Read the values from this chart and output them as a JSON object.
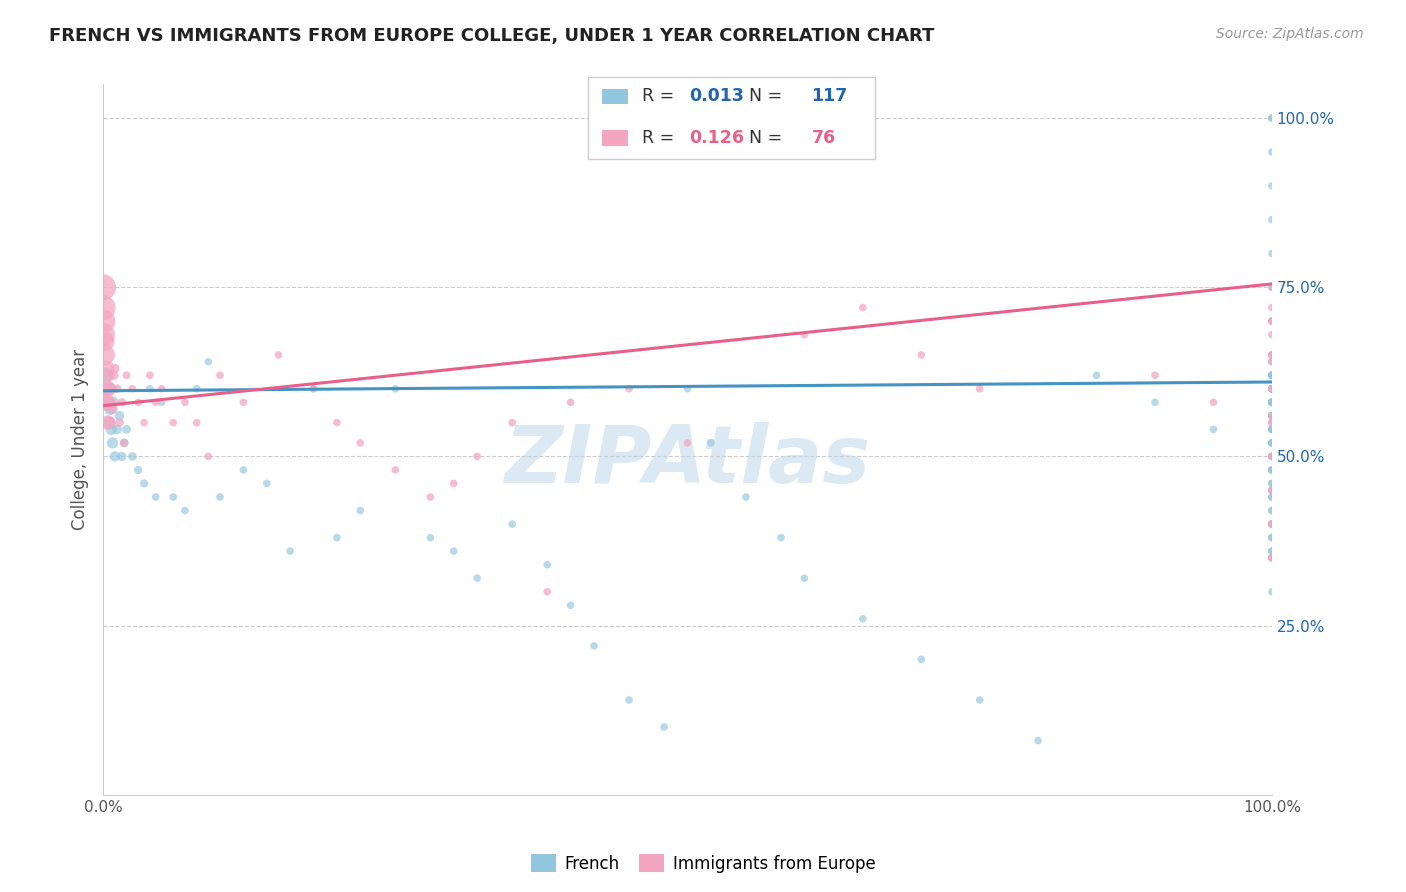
{
  "title": "FRENCH VS IMMIGRANTS FROM EUROPE COLLEGE, UNDER 1 YEAR CORRELATION CHART",
  "source": "Source: ZipAtlas.com",
  "ylabel": "College, Under 1 year",
  "legend_french_R": "0.013",
  "legend_french_N": "117",
  "legend_immigrants_R": "0.126",
  "legend_immigrants_N": "76",
  "legend_label_french": "French",
  "legend_label_immigrants": "Immigrants from Europe",
  "watermark": "ZIPAtlas",
  "blue_color": "#92c5de",
  "pink_color": "#f4a6c0",
  "blue_line_color": "#4393c3",
  "pink_line_color": "#e8608a",
  "blue_r_color": "#2166ac",
  "pink_r_color": "#e8608a",
  "background": "#ffffff",
  "french_x": [
    0.002,
    0.003,
    0.004,
    0.005,
    0.006,
    0.007,
    0.008,
    0.009,
    0.01,
    0.012,
    0.014,
    0.016,
    0.018,
    0.02,
    0.025,
    0.03,
    0.035,
    0.04,
    0.045,
    0.05,
    0.06,
    0.07,
    0.08,
    0.09,
    0.1,
    0.12,
    0.14,
    0.16,
    0.18,
    0.2,
    0.22,
    0.25,
    0.28,
    0.3,
    0.32,
    0.35,
    0.38,
    0.4,
    0.42,
    0.45,
    0.48,
    0.5,
    0.52,
    0.55,
    0.58,
    0.6,
    0.65,
    0.7,
    0.75,
    0.8,
    0.85,
    0.9,
    0.95,
    1.0,
    1.0,
    1.0,
    1.0,
    1.0,
    1.0,
    1.0,
    1.0,
    1.0,
    1.0,
    1.0,
    1.0,
    1.0,
    1.0,
    1.0,
    1.0,
    1.0,
    1.0,
    1.0,
    1.0,
    1.0,
    1.0,
    1.0,
    1.0,
    1.0,
    1.0,
    1.0,
    1.0,
    1.0,
    1.0,
    1.0,
    1.0,
    1.0,
    1.0,
    1.0,
    1.0,
    1.0,
    1.0,
    1.0,
    1.0,
    1.0,
    1.0,
    1.0,
    1.0,
    1.0,
    1.0,
    1.0,
    1.0,
    1.0,
    1.0,
    1.0,
    1.0,
    1.0,
    1.0,
    1.0,
    1.0,
    1.0,
    1.0,
    1.0,
    1.0,
    1.0,
    1.0,
    1.0,
    1.0,
    1.0,
    1.0
  ],
  "french_y": [
    0.62,
    0.6,
    0.58,
    0.55,
    0.57,
    0.54,
    0.52,
    0.58,
    0.5,
    0.54,
    0.56,
    0.5,
    0.52,
    0.54,
    0.5,
    0.48,
    0.46,
    0.6,
    0.44,
    0.58,
    0.44,
    0.42,
    0.6,
    0.64,
    0.44,
    0.48,
    0.46,
    0.36,
    0.6,
    0.38,
    0.42,
    0.6,
    0.38,
    0.36,
    0.32,
    0.4,
    0.34,
    0.28,
    0.22,
    0.14,
    0.1,
    0.6,
    0.52,
    0.44,
    0.38,
    0.32,
    0.26,
    0.2,
    0.14,
    0.08,
    0.62,
    0.58,
    0.54,
    0.95,
    0.9,
    0.85,
    0.8,
    0.75,
    0.7,
    0.65,
    0.6,
    0.55,
    0.5,
    0.45,
    0.4,
    0.35,
    0.3,
    0.6,
    0.58,
    0.56,
    0.54,
    0.6,
    0.58,
    0.56,
    0.62,
    0.6,
    1.0,
    1.0,
    0.62,
    0.58,
    0.56,
    0.54,
    0.52,
    0.5,
    0.48,
    0.64,
    0.62,
    0.6,
    0.58,
    0.56,
    0.54,
    0.52,
    0.5,
    0.48,
    0.46,
    0.44,
    0.42,
    0.4,
    0.38,
    0.36,
    0.62,
    0.6,
    0.58,
    0.56,
    0.54,
    0.52,
    0.5,
    0.48,
    0.46,
    0.44,
    0.42,
    0.4,
    0.38,
    0.36,
    0.62,
    0.6,
    0.58
  ],
  "french_sizes": [
    120,
    100,
    90,
    80,
    75,
    70,
    65,
    60,
    55,
    50,
    48,
    45,
    42,
    40,
    38,
    36,
    34,
    32,
    30,
    30,
    30,
    30,
    30,
    30,
    30,
    30,
    30,
    30,
    30,
    30,
    30,
    30,
    30,
    30,
    30,
    30,
    30,
    30,
    30,
    30,
    30,
    30,
    30,
    30,
    30,
    30,
    30,
    30,
    30,
    30,
    30,
    30,
    30,
    30,
    30,
    30,
    30,
    30,
    30,
    30,
    30,
    30,
    30,
    30,
    30,
    30,
    30,
    30,
    30,
    30,
    30,
    30,
    30,
    30,
    30,
    30,
    30,
    30,
    30,
    30,
    30,
    30,
    30,
    30,
    30,
    30,
    30,
    30,
    30,
    30,
    30,
    30,
    30,
    30,
    30,
    30,
    30,
    30,
    30,
    30,
    30,
    30,
    30,
    30,
    30,
    30,
    30,
    30,
    30,
    30,
    30,
    30,
    30,
    30,
    30,
    30,
    30
  ],
  "immigrants_x": [
    0.0,
    0.0,
    0.0,
    0.001,
    0.001,
    0.002,
    0.002,
    0.003,
    0.003,
    0.004,
    0.004,
    0.005,
    0.005,
    0.006,
    0.007,
    0.008,
    0.009,
    0.01,
    0.012,
    0.014,
    0.016,
    0.018,
    0.02,
    0.025,
    0.03,
    0.035,
    0.04,
    0.045,
    0.05,
    0.06,
    0.07,
    0.08,
    0.09,
    0.1,
    0.12,
    0.15,
    0.18,
    0.2,
    0.22,
    0.25,
    0.28,
    0.3,
    0.32,
    0.35,
    0.38,
    0.4,
    0.45,
    0.5,
    0.6,
    0.65,
    0.7,
    0.75,
    0.9,
    0.95,
    1.0,
    1.0,
    1.0,
    1.0,
    1.0,
    1.0,
    1.0,
    1.0,
    1.0,
    1.0,
    1.0,
    1.0,
    1.0,
    1.0,
    1.0,
    1.0,
    1.0,
    1.0,
    1.0,
    1.0,
    1.0,
    1.0
  ],
  "immigrants_y": [
    0.75,
    0.72,
    0.68,
    0.7,
    0.65,
    0.6,
    0.67,
    0.58,
    0.63,
    0.55,
    0.6,
    0.58,
    0.62,
    0.55,
    0.6,
    0.57,
    0.62,
    0.63,
    0.6,
    0.55,
    0.58,
    0.52,
    0.62,
    0.6,
    0.58,
    0.55,
    0.62,
    0.58,
    0.6,
    0.55,
    0.58,
    0.55,
    0.5,
    0.62,
    0.58,
    0.65,
    0.6,
    0.55,
    0.52,
    0.48,
    0.44,
    0.46,
    0.5,
    0.55,
    0.3,
    0.58,
    0.6,
    0.52,
    0.68,
    0.72,
    0.65,
    0.6,
    0.62,
    0.58,
    0.75,
    0.7,
    0.65,
    0.6,
    0.55,
    0.5,
    0.45,
    0.4,
    0.35,
    0.7,
    0.65,
    0.6,
    0.55,
    0.5,
    0.45,
    0.4,
    0.35,
    0.72,
    0.68,
    0.64,
    0.6,
    0.56
  ],
  "immigrants_sizes": [
    350,
    320,
    290,
    260,
    230,
    200,
    175,
    150,
    130,
    110,
    95,
    80,
    70,
    65,
    60,
    55,
    50,
    45,
    40,
    38,
    36,
    34,
    32,
    30,
    30,
    30,
    30,
    30,
    30,
    30,
    30,
    30,
    30,
    30,
    30,
    30,
    30,
    30,
    30,
    30,
    30,
    30,
    30,
    30,
    30,
    30,
    30,
    30,
    30,
    30,
    30,
    30,
    30,
    30,
    30,
    30,
    30,
    30,
    30,
    30,
    30,
    30,
    30,
    30,
    30,
    30,
    30,
    30,
    30,
    30,
    30,
    30,
    30,
    30,
    30,
    30
  ],
  "xlim": [
    0.0,
    1.0
  ],
  "ylim": [
    0.0,
    1.05
  ],
  "xticks": [
    0.0,
    0.25,
    0.5,
    0.75,
    1.0
  ],
  "xticklabels": [
    "0.0%",
    "",
    "",
    "",
    "100.0%"
  ],
  "ytick_right_values": [
    0.25,
    0.5,
    0.75,
    1.0
  ],
  "ytick_right_labels": [
    "25.0%",
    "50.0%",
    "75.0%",
    "100.0%"
  ],
  "french_trend_x": [
    0.0,
    1.0
  ],
  "french_trend_y": [
    0.597,
    0.61
  ],
  "immigrants_trend_x": [
    0.0,
    1.0
  ],
  "immigrants_trend_y": [
    0.575,
    0.755
  ]
}
